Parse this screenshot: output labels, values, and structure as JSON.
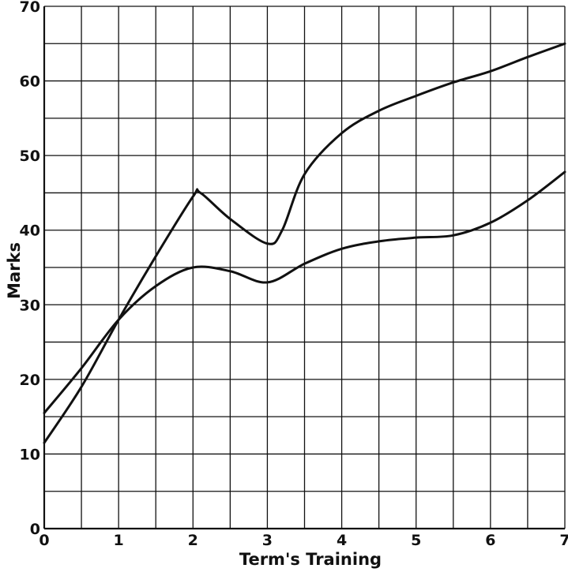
{
  "chart_data": {
    "type": "line",
    "title": "",
    "xlabel": "Term's Training",
    "ylabel": "Marks",
    "xlim": [
      0,
      7
    ],
    "ylim": [
      0,
      70
    ],
    "x_ticks": [
      0,
      1,
      2,
      3,
      4,
      5,
      6,
      7
    ],
    "y_ticks": [
      0,
      10,
      20,
      30,
      40,
      50,
      60,
      70
    ],
    "y_tick_labels": [
      "0",
      "10",
      "20",
      "30",
      "40",
      "50",
      "60",
      "70"
    ],
    "x_tick_labels": [
      "0",
      "1",
      "2",
      "3",
      "4",
      "5",
      "6",
      "7"
    ],
    "grid": true,
    "grid_step_x": 0.5,
    "grid_step_y": 5,
    "series": [
      {
        "x": [
          0,
          0.5,
          1,
          1.5,
          2,
          2.1,
          2.5,
          3,
          3.2,
          3.5,
          4,
          4.5,
          5,
          5.5,
          6,
          6.5,
          7
        ],
        "values": [
          11.5,
          19,
          28,
          36.5,
          44.5,
          45,
          41.5,
          38.2,
          40,
          47.5,
          53,
          56,
          58,
          59.8,
          61.3,
          63.2,
          65
        ]
      },
      {
        "x": [
          0,
          0.5,
          1,
          1.5,
          2,
          2.5,
          3,
          3.5,
          4,
          4.5,
          5,
          5.5,
          6,
          6.5,
          7
        ],
        "values": [
          15.5,
          21.5,
          28,
          32.5,
          35,
          34.5,
          33,
          35.5,
          37.5,
          38.5,
          39,
          39.3,
          41,
          44,
          47.8
        ]
      }
    ]
  }
}
